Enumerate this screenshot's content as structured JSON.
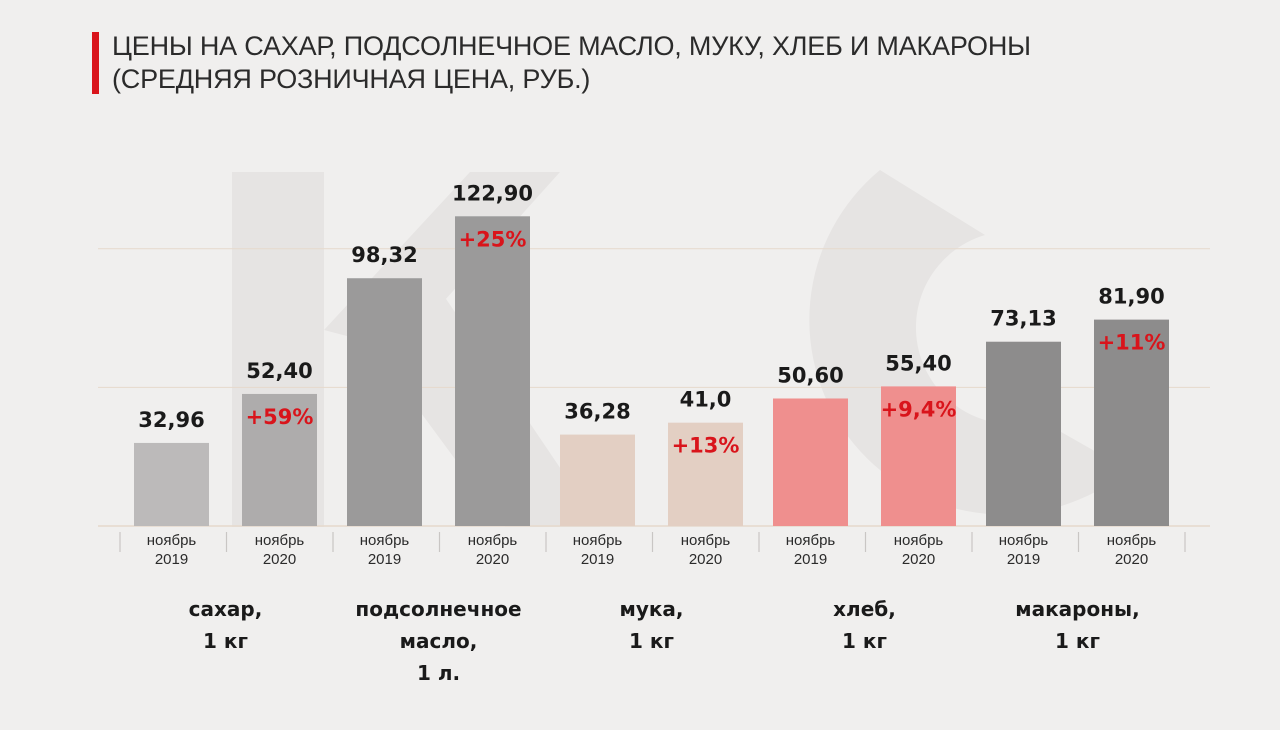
{
  "title_line1": "ЦЕНЫ НА САХАР, ПОДСОЛНЕЧНОЕ МАСЛО, МУКУ, ХЛЕБ И МАКАРОНЫ",
  "title_line2": "(СРЕДНЯЯ РОЗНИЧНАЯ ЦЕНА, РУБ.)",
  "colors": {
    "accent": "#d9141b",
    "grid": "#e6d9cc",
    "sugar": [
      "#bcbaba",
      "#aeacac"
    ],
    "oil": [
      "#9b9a9a",
      "#9b9a9a"
    ],
    "flour": [
      "#e3cfc3",
      "#e3cfc3"
    ],
    "bread": [
      "#ef8f8e",
      "#ef8f8e"
    ],
    "pasta": [
      "#8d8c8c",
      "#8d8c8c"
    ]
  },
  "chart_data": {
    "type": "bar",
    "title": "ЦЕНЫ НА САХАР, ПОДСОЛНЕЧНОЕ МАСЛО, МУКУ, ХЛЕБ И МАКАРОНЫ (СРЕДНЯЯ РОЗНИЧНАЯ ЦЕНА, РУБ.)",
    "xlabel": "",
    "ylabel": "",
    "ylim": [
      0,
      140
    ],
    "grid": true,
    "groups": [
      {
        "key": "sugar",
        "category": [
          "сахар,",
          "1 кг"
        ],
        "bars": [
          {
            "period": [
              "ноябрь",
              "2019"
            ],
            "value": 32.96,
            "label": "32,96",
            "change": ""
          },
          {
            "period": [
              "ноябрь",
              "2020"
            ],
            "value": 52.4,
            "label": "52,40",
            "change": "+59%"
          }
        ]
      },
      {
        "key": "oil",
        "category": [
          "подсолнечное",
          "масло,",
          "1 л."
        ],
        "bars": [
          {
            "period": [
              "ноябрь",
              "2019"
            ],
            "value": 98.32,
            "label": "98,32",
            "change": ""
          },
          {
            "period": [
              "ноябрь",
              "2020"
            ],
            "value": 122.9,
            "label": "122,90",
            "change": "+25%"
          }
        ]
      },
      {
        "key": "flour",
        "category": [
          "мука,",
          "1 кг"
        ],
        "bars": [
          {
            "period": [
              "ноябрь",
              "2019"
            ],
            "value": 36.28,
            "label": "36,28",
            "change": ""
          },
          {
            "period": [
              "ноябрь",
              "2020"
            ],
            "value": 41.0,
            "label": "41,0",
            "change": "+13%"
          }
        ]
      },
      {
        "key": "bread",
        "category": [
          "хлеб,",
          "1 кг"
        ],
        "bars": [
          {
            "period": [
              "ноябрь",
              "2019"
            ],
            "value": 50.6,
            "label": "50,60",
            "change": ""
          },
          {
            "period": [
              "ноябрь",
              "2020"
            ],
            "value": 55.4,
            "label": "55,40",
            "change": "+9,4%"
          }
        ]
      },
      {
        "key": "pasta",
        "category": [
          "макароны,",
          "1 кг"
        ],
        "bars": [
          {
            "period": [
              "ноябрь",
              "2019"
            ],
            "value": 73.13,
            "label": "73,13",
            "change": ""
          },
          {
            "period": [
              "ноябрь",
              "2020"
            ],
            "value": 81.9,
            "label": "81,90",
            "change": "+11%"
          }
        ]
      }
    ]
  }
}
